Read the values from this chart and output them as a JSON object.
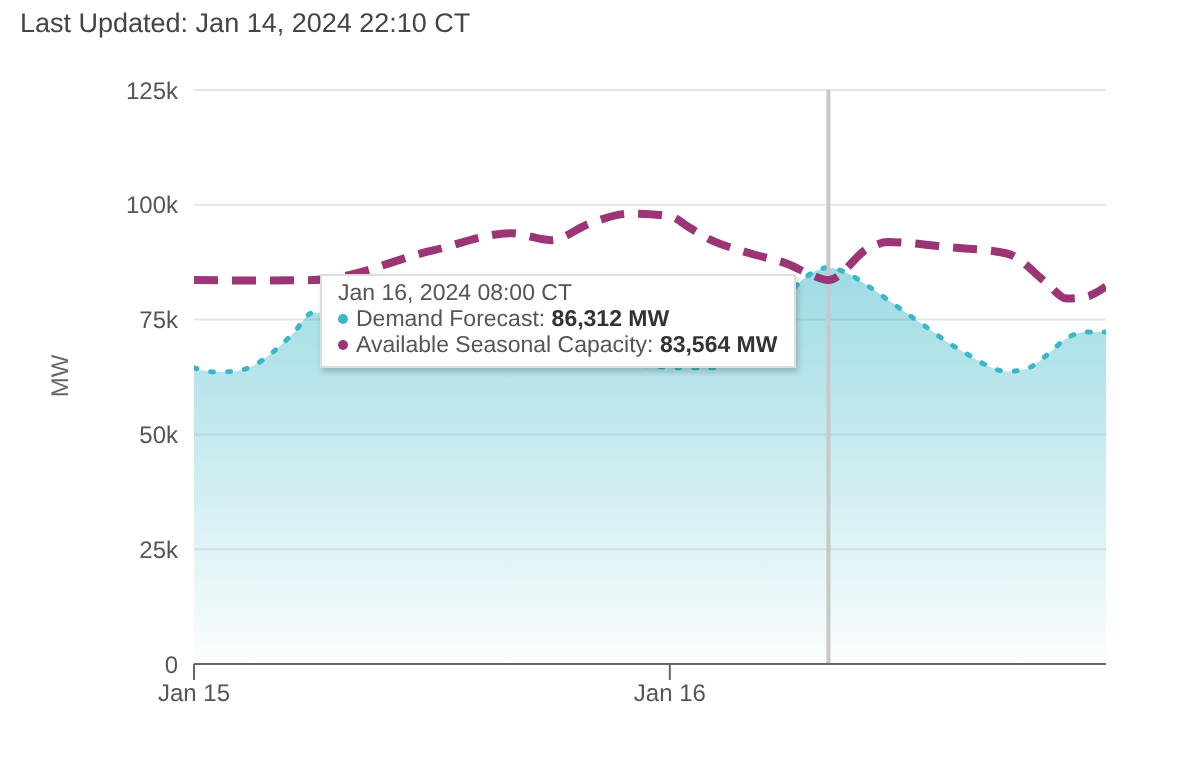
{
  "chart_data": {
    "type": "area",
    "title": "Last Updated: Jan 14, 2024 22:10 CT",
    "ylabel": "MW",
    "xlim": [
      "2024-01-15T00:00",
      "2024-01-16T22:00"
    ],
    "xticks": [
      {
        "value": "2024-01-15",
        "label": "Jan 15"
      },
      {
        "value": "2024-01-16",
        "label": "Jan 16"
      }
    ],
    "ylim": [
      0,
      125000
    ],
    "yticks": [
      0,
      {
        "value": 25000,
        "label": "25k"
      },
      {
        "value": 50000,
        "label": "50k"
      },
      {
        "value": 75000,
        "label": "75k"
      },
      {
        "value": 100000,
        "label": "100k"
      },
      {
        "value": 125000,
        "label": "125k"
      }
    ],
    "grid": "y",
    "marker": "none",
    "annotations": [
      "Jan 16, 2024 08:00 CT",
      "Demand Forecast: 86,312 MW",
      "Available Seasonal Capacity: 83,564 MW"
    ],
    "ref_lines": [
      {
        "axis": "x",
        "value": "2024-01-16T08:00",
        "color": "#c8c8c8"
      }
    ],
    "series": [
      {
        "color": "#3bb8c8",
        "line_style": "dotted",
        "x": [
          "2024-01-15T00:00",
          "2024-01-15T01:00",
          "2024-01-15T02:00",
          "2024-01-15T03:00",
          "2024-01-15T04:00",
          "2024-01-15T05:00",
          "2024-01-15T06:00",
          "2024-01-16T01:00",
          "2024-01-16T02:00",
          "2024-01-16T08:00",
          "2024-01-16T09:00",
          "2024-01-16T10:00",
          "2024-01-16T11:00",
          "2024-01-16T12:00",
          "2024-01-16T13:00",
          "2024-01-16T14:00",
          "2024-01-16T15:00",
          "2024-01-16T16:00",
          "2024-01-16T17:00",
          "2024-01-16T18:00",
          "2024-01-16T19:00",
          "2024-01-16T20:00",
          "2024-01-16T21:00",
          "2024-01-16T22:00"
        ],
        "values": [
          64500,
          63600,
          63700,
          65000,
          68000,
          72000,
          76500,
          64500,
          64500,
          86300,
          85000,
          82300,
          79300,
          76200,
          73200,
          70100,
          67500,
          65000,
          63700,
          64300,
          67200,
          70900,
          72300,
          72300
        ]
      },
      {
        "type": "line",
        "color": "#9b3576",
        "line_style": "dashed",
        "x": [
          "2024-01-15T00:00",
          "2024-01-15T03:00",
          "2024-01-15T06:00",
          "2024-01-15T12:00",
          "2024-01-15T16:00",
          "2024-01-15T18:00",
          "2024-01-15T20:00",
          "2024-01-15T22:00",
          "2024-01-16T00:00",
          "2024-01-16T01:00",
          "2024-01-16T02:00",
          "2024-01-16T04:00",
          "2024-01-16T06:00",
          "2024-01-16T07:00",
          "2024-01-16T08:00",
          "2024-01-16T10:00",
          "2024-01-16T11:00",
          "2024-01-16T14:00",
          "2024-01-16T17:00",
          "2024-01-16T19:00",
          "2024-01-16T20:00",
          "2024-01-16T21:00",
          "2024-01-16T22:00"
        ],
        "values": [
          83600,
          83500,
          83600,
          90000,
          93800,
          92300,
          96000,
          98100,
          97500,
          95000,
          92500,
          89500,
          87000,
          85000,
          83600,
          90500,
          91900,
          90800,
          89400,
          83000,
          79600,
          80000,
          82200
        ]
      }
    ]
  }
}
